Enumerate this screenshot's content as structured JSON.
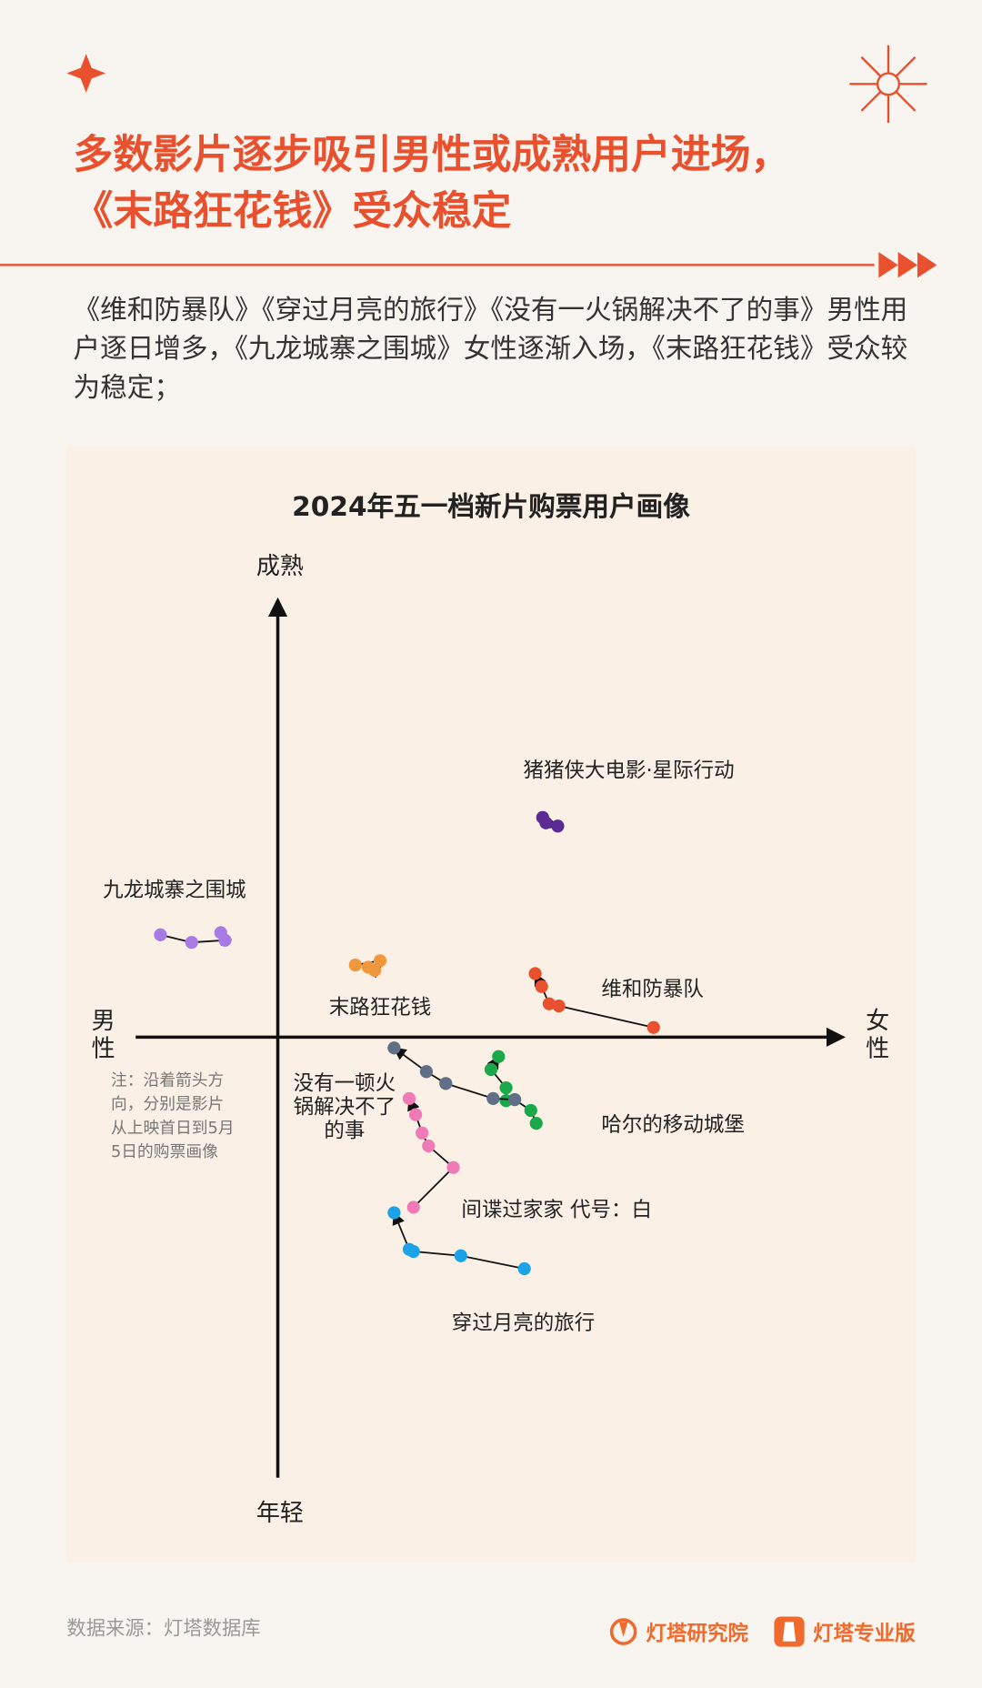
{
  "header": {
    "title": [
      "多数影片逐步吸引男性或成熟用户进场，",
      "《末路狂花钱》受众稳定"
    ],
    "subtitle": "《维和防暴队》《穿过月亮的旅行》《没有一火锅解决不了的事》男性用户逐日增多，《九龙城寨之围城》女性逐渐入场，《末路狂花钱》受众较为稳定；"
  },
  "chart_data": {
    "type": "scatter",
    "title": "2024年五一档新片购票用户画像",
    "y_top_label": "成熟",
    "y_bottom_label": "年轻",
    "x_left_label": "男性",
    "x_right_label": "女性",
    "note": "注：沿着箭头方向，分别是影片从上映首日到5月5日的购票画像",
    "xlim": [
      -132,
      527
    ],
    "ylim": [
      -409,
      408
    ],
    "series": [
      {
        "name": "九龙城寨之围城",
        "color": "#a77be3",
        "x": [
          -109,
          -80,
          -49,
          -53
        ],
        "y": [
          95,
          88,
          90,
          97
        ]
      },
      {
        "name": "猪猪侠大电影·星际行动",
        "color": "#5b2a92",
        "x": [
          246,
          249,
          260
        ],
        "y": [
          204,
          199,
          196
        ]
      },
      {
        "name": "末路狂花钱",
        "color": "#f0963c",
        "x": [
          72,
          95,
          90,
          84
        ],
        "y": [
          67,
          71,
          62,
          65
        ]
      },
      {
        "name": "维和防暴队",
        "color": "#e8502e",
        "x": [
          349,
          261,
          252,
          245,
          239
        ],
        "y": [
          9,
          29,
          31,
          47,
          59
        ]
      },
      {
        "name": "哈尔的移动城堡",
        "color": "#1aa84a",
        "x": [
          240,
          235,
          220,
          212,
          212,
          198,
          205
        ],
        "y": [
          -80,
          -68,
          -58,
          -59,
          -47,
          -30,
          -18
        ]
      },
      {
        "name": "间谍过家家 代号：白",
        "color": "#5f6f85",
        "x": [
          220,
          200,
          156,
          138,
          108
        ],
        "y": [
          -58,
          -57,
          -43,
          -32,
          -10
        ]
      },
      {
        "name": "没有一顿火锅解决不了的事",
        "color": "#f07ab8",
        "x": [
          126,
          163,
          140,
          134,
          128,
          122
        ],
        "y": [
          -158,
          -121,
          -101,
          -89,
          -72,
          -57
        ]
      },
      {
        "name": "穿过月亮的旅行",
        "color": "#1aa3e6",
        "x": [
          229,
          170,
          126,
          122,
          108
        ],
        "y": [
          -215,
          -203,
          -199,
          -197,
          -163
        ]
      }
    ]
  },
  "footer": {
    "source": "数据来源：灯塔数据库",
    "brands": [
      "灯塔研究院",
      "灯塔专业版"
    ]
  }
}
